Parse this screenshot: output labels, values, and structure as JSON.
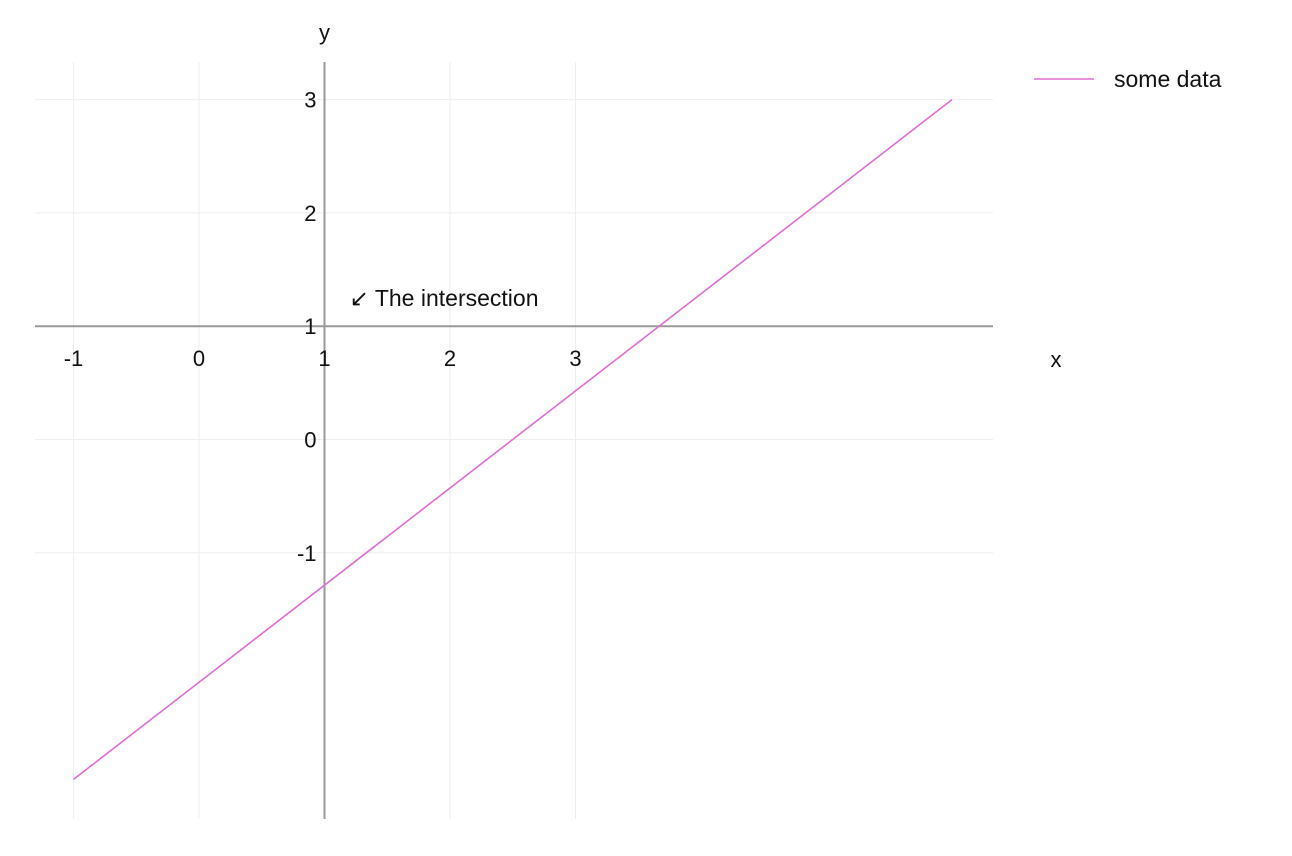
{
  "chart_data": {
    "type": "line",
    "xlabel": "x",
    "ylabel": "y",
    "xlim": [
      -1.3,
      5.35
    ],
    "ylim": [
      -3.35,
      3.35
    ],
    "x_axis_crosses_y_at": 1,
    "y_axis_crosses_x_at": 1,
    "x_ticks": [
      -1,
      0,
      1,
      2,
      3
    ],
    "x_tick_labels": [
      "-1",
      "0",
      "1",
      "2",
      "3"
    ],
    "y_ticks": [
      -1,
      0,
      1,
      2,
      3
    ],
    "y_tick_labels": [
      "-1",
      "0",
      "1",
      "2",
      "3"
    ],
    "x_grid": [
      -1,
      0,
      1,
      2,
      3
    ],
    "y_grid": [
      -1,
      0,
      1,
      2,
      3
    ],
    "grid": true,
    "series": [
      {
        "name": "some data",
        "color": "#e36bd6",
        "x": [
          -1,
          6
        ],
        "y": [
          -3,
          3
        ]
      }
    ],
    "annotations": [
      {
        "text": "↙ The intersection",
        "x": 1.2,
        "y": 1.25
      }
    ],
    "legend": {
      "position": "top-right",
      "entries": [
        "some data"
      ]
    }
  }
}
